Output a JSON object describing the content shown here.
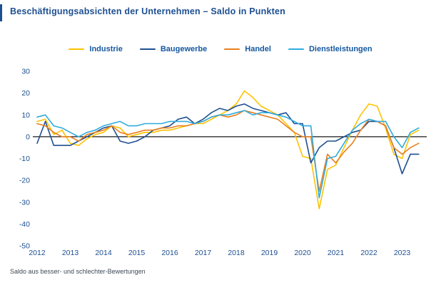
{
  "page": {
    "title": "Beschäftigungsabsichten der Unternehmen – Saldo in Punkten",
    "footnote": "Saldo aus besser- und schlechter-Bewertungen"
  },
  "colors": {
    "title_text": "#1d4f91",
    "legend_text": "#1558a0",
    "tick_text": "#1d4f91",
    "zero_line": "#1a1a1a",
    "industrie": "#fdc300",
    "baugewerbe": "#1d4f91",
    "handel": "#e8801e",
    "dienstleistungen": "#2fabdd"
  },
  "chart_data": {
    "type": "line",
    "title": "Beschäftigungsabsichten der Unternehmen – Saldo in Punkten",
    "xlabel": "",
    "ylabel": "Saldo in Punkten",
    "ylim": [
      -50,
      30
    ],
    "y_ticks": [
      30,
      20,
      10,
      0,
      -10,
      -20,
      -30,
      -40,
      -50
    ],
    "x_tick_labels": [
      "2012",
      "2013",
      "2014",
      "2015",
      "2016",
      "2017",
      "2018",
      "2019",
      "2020",
      "2021",
      "2022",
      "2023"
    ],
    "points_per_year": 4,
    "x_start_year": 2012,
    "grid": "off",
    "legend_position": "top",
    "series": [
      {
        "name": "Industrie",
        "color": "#fdc300",
        "values": [
          7,
          8,
          1,
          3,
          -3,
          -4,
          -1,
          1,
          2,
          5,
          4,
          0,
          1,
          2,
          2,
          3,
          3,
          4,
          5,
          6,
          6,
          8,
          10,
          12,
          15,
          21,
          18,
          14,
          12,
          10,
          6,
          2,
          -9,
          -10,
          -33,
          -15,
          -13,
          -5,
          3,
          10,
          15,
          14,
          4,
          -8,
          -10,
          1,
          3
        ]
      },
      {
        "name": "Baugewerbe",
        "color": "#1d4f91",
        "values": [
          -3,
          7,
          -4,
          -4,
          -4,
          -2,
          0,
          2,
          4,
          5,
          -2,
          -3,
          -2,
          0,
          3,
          4,
          5,
          8,
          9,
          6,
          8,
          11,
          13,
          12,
          14,
          15,
          13,
          12,
          11,
          10,
          11,
          6,
          6,
          -12,
          -5,
          -2,
          -2,
          0,
          2,
          3,
          7,
          7,
          5,
          -5,
          -17,
          -8,
          -8
        ]
      },
      {
        "name": "Handel",
        "color": "#e8801e",
        "values": [
          6,
          5,
          2,
          0,
          0,
          -2,
          1,
          2,
          3,
          5,
          2,
          1,
          2,
          3,
          3,
          4,
          4,
          5,
          5,
          6,
          7,
          9,
          10,
          9,
          10,
          12,
          11,
          10,
          9,
          8,
          5,
          2,
          0,
          0,
          -25,
          -8,
          -12,
          -7,
          -3,
          3,
          8,
          7,
          5,
          -5,
          -8,
          -5,
          -3
        ]
      },
      {
        "name": "Dienstleistungen",
        "color": "#2fabdd",
        "values": [
          9,
          10,
          5,
          4,
          2,
          0,
          2,
          3,
          5,
          6,
          7,
          5,
          5,
          6,
          6,
          6,
          7,
          7,
          7,
          6,
          7,
          9,
          10,
          10,
          11,
          12,
          10,
          11,
          11,
          10,
          9,
          7,
          5,
          5,
          -28,
          -10,
          -9,
          -3,
          3,
          6,
          8,
          7,
          7,
          0,
          -5,
          2,
          4
        ]
      }
    ]
  }
}
